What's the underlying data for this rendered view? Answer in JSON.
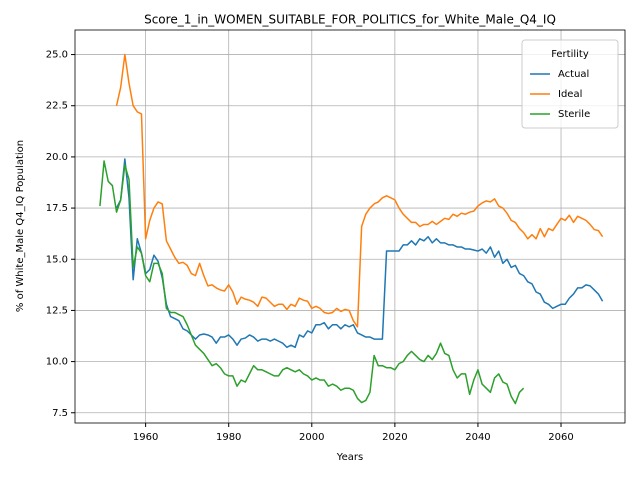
{
  "chart_data": {
    "type": "line",
    "title": "Score_1_in_WOMEN_SUITABLE_FOR_POLITICS_for_White_Male_Q4_IQ",
    "xlabel": "Years",
    "ylabel": "% of White_Male Q4_IQ Population",
    "x": [
      1949,
      1950,
      1951,
      1952,
      1953,
      1954,
      1955,
      1956,
      1957,
      1958,
      1959,
      1960,
      1961,
      1962,
      1963,
      1964,
      1965,
      1966,
      1967,
      1968,
      1969,
      1970,
      1971,
      1972,
      1973,
      1974,
      1975,
      1976,
      1977,
      1978,
      1979,
      1980,
      1981,
      1982,
      1983,
      1984,
      1985,
      1986,
      1987,
      1988,
      1989,
      1990,
      1991,
      1992,
      1993,
      1994,
      1995,
      1996,
      1997,
      1998,
      1999,
      2000,
      2001,
      2002,
      2003,
      2004,
      2005,
      2006,
      2007,
      2008,
      2009,
      2010,
      2011,
      2012,
      2013,
      2014,
      2015,
      2016,
      2017,
      2018,
      2019,
      2020,
      2021,
      2022,
      2023,
      2024,
      2025,
      2026,
      2027,
      2028,
      2029,
      2030,
      2031,
      2032,
      2033,
      2034,
      2035,
      2036,
      2037,
      2038,
      2039,
      2040,
      2041,
      2042,
      2043,
      2044,
      2045,
      2046,
      2047,
      2048,
      2049,
      2050,
      2051,
      2052,
      2053,
      2054,
      2055,
      2056,
      2057,
      2058,
      2059,
      2060,
      2061,
      2062,
      2063,
      2064,
      2065,
      2066,
      2067,
      2068,
      2069,
      2070
    ],
    "series": [
      {
        "name": "Actual",
        "color": "#1f77b4",
        "values": [
          null,
          null,
          null,
          null,
          17.5,
          17.9,
          19.9,
          18.0,
          14.0,
          16.0,
          15.3,
          14.3,
          14.5,
          15.2,
          14.9,
          14.1,
          12.8,
          12.2,
          12.1,
          12.0,
          11.6,
          11.5,
          11.3,
          11.1,
          11.3,
          11.35,
          11.3,
          11.2,
          10.9,
          11.2,
          11.2,
          11.3,
          11.1,
          10.8,
          11.1,
          11.15,
          11.3,
          11.2,
          11.0,
          11.1,
          11.1,
          11.0,
          11.1,
          11.0,
          10.9,
          10.7,
          10.8,
          10.7,
          11.3,
          11.2,
          11.5,
          11.4,
          11.8,
          11.8,
          11.9,
          11.6,
          11.8,
          11.8,
          11.6,
          11.8,
          11.7,
          11.8,
          11.4,
          11.3,
          11.2,
          11.2,
          11.1,
          11.1,
          11.1,
          15.4,
          15.4,
          15.4,
          15.4,
          15.7,
          15.7,
          15.9,
          15.7,
          16.0,
          15.9,
          16.1,
          15.8,
          16.0,
          15.8,
          15.8,
          15.7,
          15.7,
          15.6,
          15.6,
          15.5,
          15.5,
          15.45,
          15.4,
          15.5,
          15.3,
          15.6,
          15.1,
          15.4,
          14.8,
          15.0,
          14.6,
          14.7,
          14.3,
          14.2,
          13.9,
          13.8,
          13.4,
          13.3,
          12.9,
          12.8,
          12.6,
          12.7,
          12.8,
          12.8,
          13.1,
          13.3,
          13.6,
          13.6,
          13.75,
          13.7,
          13.5,
          13.3,
          12.95
        ]
      },
      {
        "name": "Ideal",
        "color": "#ff7f0e",
        "values": [
          null,
          null,
          null,
          null,
          22.5,
          23.4,
          25.0,
          23.6,
          22.5,
          22.2,
          22.1,
          16.0,
          16.9,
          17.5,
          17.8,
          17.7,
          15.9,
          15.5,
          15.1,
          14.8,
          14.85,
          14.7,
          14.3,
          14.2,
          14.8,
          14.2,
          13.7,
          13.75,
          13.6,
          13.5,
          13.45,
          13.75,
          13.4,
          12.8,
          13.15,
          13.05,
          13.0,
          12.9,
          12.7,
          13.15,
          13.1,
          12.9,
          12.7,
          12.8,
          12.8,
          12.55,
          12.8,
          12.7,
          13.1,
          13.0,
          12.95,
          12.6,
          12.7,
          12.6,
          12.4,
          12.35,
          12.4,
          12.6,
          12.45,
          12.55,
          12.5,
          12.0,
          11.7,
          16.6,
          17.2,
          17.5,
          17.7,
          17.8,
          18.0,
          18.1,
          18.0,
          17.9,
          17.5,
          17.2,
          17.0,
          16.8,
          16.8,
          16.6,
          16.7,
          16.7,
          16.85,
          16.7,
          16.85,
          17.0,
          16.95,
          17.2,
          17.1,
          17.25,
          17.2,
          17.3,
          17.35,
          17.6,
          17.75,
          17.85,
          17.8,
          17.95,
          17.6,
          17.5,
          17.25,
          16.9,
          16.8,
          16.5,
          16.3,
          16.0,
          16.2,
          16.0,
          16.5,
          16.1,
          16.5,
          16.4,
          16.7,
          17.0,
          16.9,
          17.15,
          16.8,
          17.1,
          17.0,
          16.9,
          16.7,
          16.45,
          16.4,
          16.1
        ]
      },
      {
        "name": "Sterile",
        "color": "#2ca02c",
        "values": [
          17.6,
          19.8,
          18.8,
          18.6,
          17.3,
          17.9,
          19.6,
          18.9,
          14.6,
          15.6,
          15.3,
          14.2,
          13.9,
          14.8,
          14.8,
          14.3,
          12.6,
          12.4,
          12.4,
          12.3,
          12.2,
          11.8,
          11.3,
          10.8,
          10.6,
          10.4,
          10.1,
          9.8,
          9.9,
          9.7,
          9.4,
          9.3,
          9.3,
          8.8,
          9.1,
          9.0,
          9.4,
          9.8,
          9.6,
          9.6,
          9.5,
          9.4,
          9.3,
          9.3,
          9.6,
          9.7,
          9.6,
          9.5,
          9.6,
          9.4,
          9.3,
          9.1,
          9.2,
          9.1,
          9.1,
          8.8,
          8.9,
          8.8,
          8.6,
          8.7,
          8.7,
          8.6,
          8.2,
          8.0,
          8.1,
          8.5,
          10.3,
          9.8,
          9.8,
          9.7,
          9.7,
          9.6,
          9.9,
          10.0,
          10.3,
          10.5,
          10.3,
          10.1,
          10.0,
          10.3,
          10.1,
          10.4,
          10.9,
          10.4,
          10.3,
          9.6,
          9.2,
          9.4,
          9.4,
          8.4,
          9.1,
          9.6,
          8.9,
          8.7,
          8.5,
          9.2,
          9.4,
          9.0,
          8.9,
          8.3,
          7.95,
          8.5,
          8.7,
          null,
          null,
          null,
          null,
          null,
          null,
          null,
          null,
          null,
          null,
          null,
          null,
          null,
          null,
          null,
          null,
          null,
          null,
          null
        ]
      }
    ],
    "xlim": [
      1943,
      2075.4
    ],
    "ylim": [
      7.0,
      26.2
    ],
    "xticks": [
      1960,
      1980,
      2000,
      2020,
      2040,
      2060
    ],
    "yticks": [
      7.5,
      {
        "value": 10,
        "label": "10.0"
      },
      12.5,
      {
        "value": 15,
        "label": "15.0"
      },
      17.5,
      {
        "value": 20,
        "label": "20.0"
      },
      22.5,
      {
        "value": 25,
        "label": "25.0"
      }
    ],
    "grid": true,
    "legend": {
      "title": "Fertility",
      "loc": "upper right"
    }
  }
}
